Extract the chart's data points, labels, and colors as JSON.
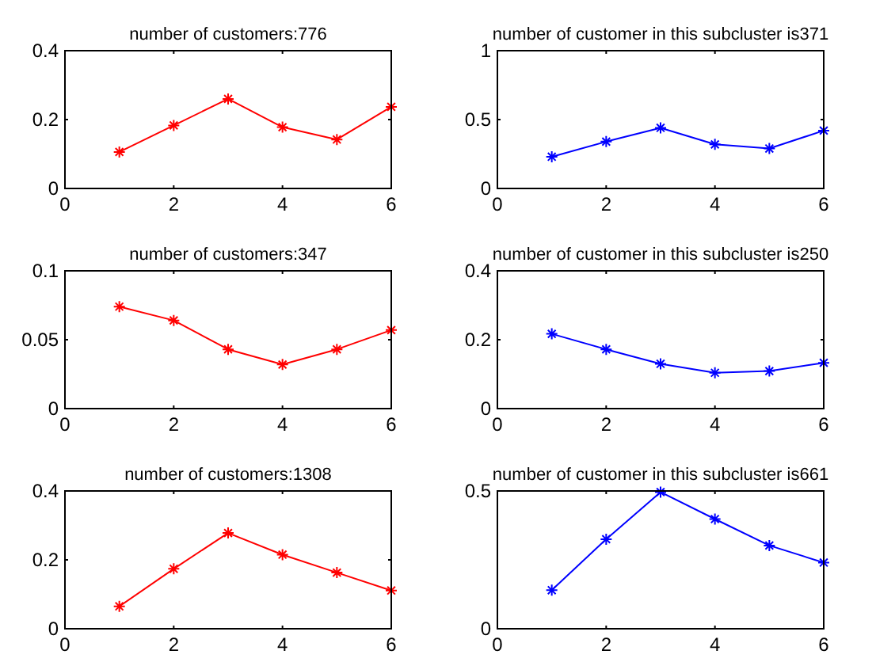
{
  "chart_data": [
    {
      "type": "line",
      "title": "number of customers:776",
      "x": [
        1,
        2,
        3,
        4,
        5,
        6
      ],
      "series": [
        {
          "color": "#ff0000",
          "values": [
            0.106,
            0.183,
            0.26,
            0.178,
            0.142,
            0.237
          ]
        }
      ],
      "xlim": [
        0,
        6
      ],
      "xticks": [
        0,
        2,
        4,
        6
      ],
      "ylim": [
        0,
        0.4
      ],
      "yticks": [
        {
          "value": 0,
          "label": "0"
        },
        {
          "value": 0.2,
          "label": "0.2"
        },
        {
          "value": 0.4,
          "label": "0.4"
        }
      ],
      "marker": "cross"
    },
    {
      "type": "line",
      "title": "number of customer in this subcluster is371",
      "x": [
        1,
        2,
        3,
        4,
        5,
        6
      ],
      "series": [
        {
          "color": "#0000ff",
          "values": [
            0.23,
            0.34,
            0.44,
            0.32,
            0.29,
            0.42
          ]
        }
      ],
      "xlim": [
        0,
        6
      ],
      "xticks": [
        0,
        2,
        4,
        6
      ],
      "ylim": [
        0,
        1
      ],
      "yticks": [
        {
          "value": 0,
          "label": "0"
        },
        {
          "value": 0.5,
          "label": "0.5"
        },
        {
          "value": 1,
          "label": "1"
        }
      ],
      "marker": "cross"
    },
    {
      "type": "line",
      "title": "number of customers:347",
      "x": [
        1,
        2,
        3,
        4,
        5,
        6
      ],
      "series": [
        {
          "color": "#ff0000",
          "values": [
            0.074,
            0.064,
            0.043,
            0.032,
            0.043,
            0.057
          ]
        }
      ],
      "xlim": [
        0,
        6
      ],
      "xticks": [
        0,
        2,
        4,
        6
      ],
      "ylim": [
        0,
        0.1
      ],
      "yticks": [
        {
          "value": 0,
          "label": "0"
        },
        {
          "value": 0.05,
          "label": "0.05"
        },
        {
          "value": 0.1,
          "label": "0.1"
        }
      ],
      "marker": "cross"
    },
    {
      "type": "line",
      "title": "number of customer in this subcluster is250",
      "x": [
        1,
        2,
        3,
        4,
        5,
        6
      ],
      "series": [
        {
          "color": "#0000ff",
          "values": [
            0.217,
            0.172,
            0.13,
            0.104,
            0.109,
            0.133
          ]
        }
      ],
      "xlim": [
        0,
        6
      ],
      "xticks": [
        0,
        2,
        4,
        6
      ],
      "ylim": [
        0,
        0.4
      ],
      "yticks": [
        {
          "value": 0,
          "label": "0"
        },
        {
          "value": 0.2,
          "label": "0.2"
        },
        {
          "value": 0.4,
          "label": "0.4"
        }
      ],
      "marker": "cross"
    },
    {
      "type": "line",
      "title": "number of customers:1308",
      "x": [
        1,
        2,
        3,
        4,
        5,
        6
      ],
      "series": [
        {
          "color": "#ff0000",
          "values": [
            0.065,
            0.174,
            0.278,
            0.215,
            0.163,
            0.111
          ]
        }
      ],
      "xlim": [
        0,
        6
      ],
      "xticks": [
        0,
        2,
        4,
        6
      ],
      "ylim": [
        0,
        0.4
      ],
      "yticks": [
        {
          "value": 0,
          "label": "0"
        },
        {
          "value": 0.2,
          "label": "0.2"
        },
        {
          "value": 0.4,
          "label": "0.4"
        }
      ],
      "marker": "cross"
    },
    {
      "type": "line",
      "title": "number of customer in this subcluster is661",
      "x": [
        1,
        2,
        3,
        4,
        5,
        6
      ],
      "series": [
        {
          "color": "#0000ff",
          "values": [
            0.14,
            0.325,
            0.496,
            0.398,
            0.302,
            0.24
          ]
        }
      ],
      "xlim": [
        0,
        6
      ],
      "xticks": [
        0,
        2,
        4,
        6
      ],
      "ylim": [
        0,
        0.5
      ],
      "yticks": [
        {
          "value": 0,
          "label": "0"
        },
        {
          "value": 0.5,
          "label": "0.5"
        }
      ],
      "marker": "cross"
    }
  ]
}
